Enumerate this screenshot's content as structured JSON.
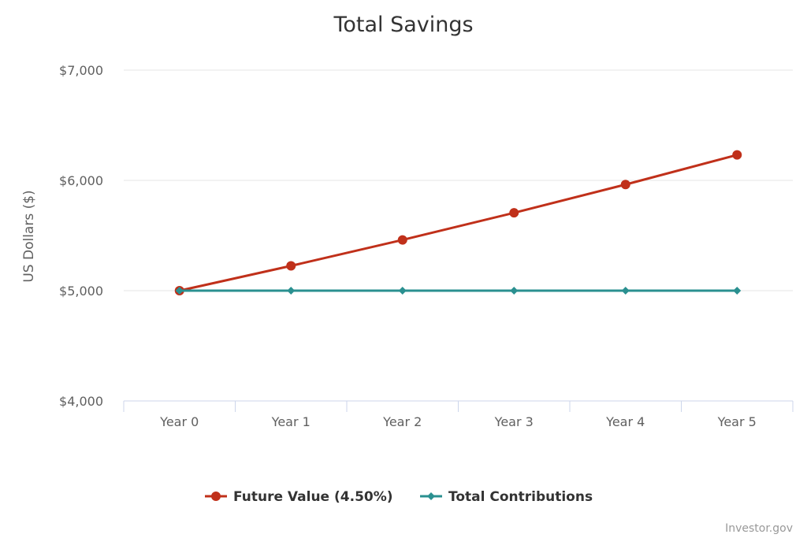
{
  "chart_data": {
    "type": "line",
    "title": "Total Savings",
    "ylabel": "US Dollars ($)",
    "xlabel": "",
    "categories": [
      "Year 0",
      "Year 1",
      "Year 2",
      "Year 3",
      "Year 4",
      "Year 5"
    ],
    "ylim": [
      4000,
      7000
    ],
    "yticks": [
      {
        "value": 4000,
        "label": "$4,000"
      },
      {
        "value": 5000,
        "label": "$5,000"
      },
      {
        "value": 6000,
        "label": "$6,000"
      },
      {
        "value": 7000,
        "label": "$7,000"
      }
    ],
    "grid": true,
    "legend_position": "bottom-center",
    "series": [
      {
        "name": "Future Value (4.50%)",
        "values": [
          5000,
          5225,
          5460.13,
          5705.83,
          5962.59,
          6230.91
        ],
        "color": "#c0301a",
        "marker": "circle"
      },
      {
        "name": "Total Contributions",
        "values": [
          5000,
          5000,
          5000,
          5000,
          5000,
          5000
        ],
        "color": "#2a9090",
        "marker": "diamond"
      }
    ],
    "credits": "Investor.gov"
  }
}
